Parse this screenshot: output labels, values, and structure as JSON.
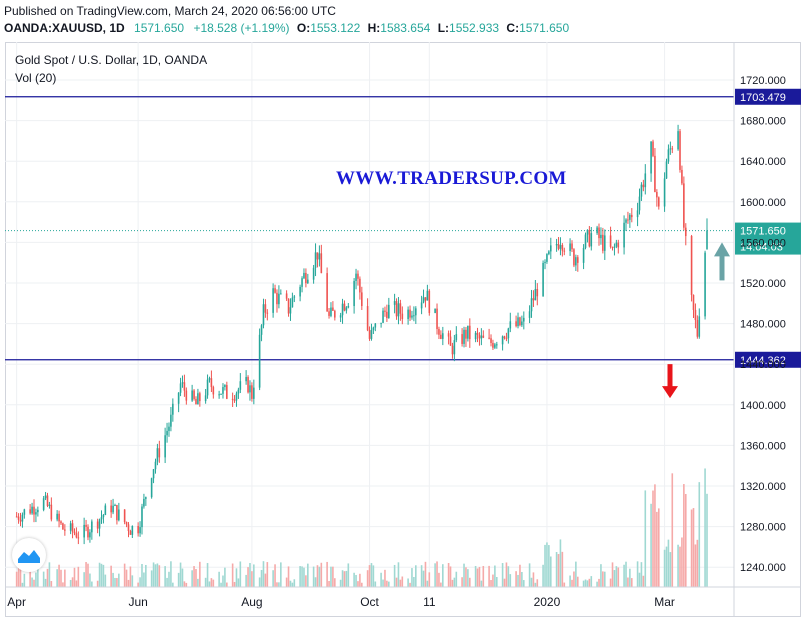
{
  "header": {
    "published": "Published on TradingView.com, March 24, 2020 06:56:00 UTC",
    "symbol": "OANDA:XAUUSD, 1D",
    "last": "1571.650",
    "change": "+18.528 (+1.19%)",
    "o_label": "O:",
    "o_value": "1553.122",
    "h_label": "H:",
    "h_value": "1583.654",
    "l_label": "L:",
    "l_value": "1552.933",
    "c_label": "C:",
    "c_value": "1571.650"
  },
  "legend": {
    "title": "Gold Spot / U.S. Dollar, 1D, OANDA",
    "volume": "Vol (20)"
  },
  "watermark": "WWW.TRADERSUP.COM",
  "icons": {
    "logo": "tradingview-logo-icon",
    "down_arrow": "arrow-down-icon",
    "up_arrow": "arrow-up-icon"
  },
  "colors": {
    "up": "#26a69a",
    "down": "#ef5350",
    "hline": "#1a1a9a",
    "price_line": "#26a69a",
    "arrow_down": "#e8141a",
    "arrow_up": "#6aa3a6"
  },
  "chart_data": {
    "type": "candlestick",
    "title": "Gold Spot / U.S. Dollar, 1D, OANDA",
    "ylim": [
      1220,
      1740
    ],
    "y_ticks": [
      "1720.000",
      "1680.000",
      "1640.000",
      "1600.000",
      "1560.000",
      "1520.000",
      "1480.000",
      "1440.000",
      "1400.000",
      "1360.000",
      "1320.000",
      "1280.000",
      "1240.000"
    ],
    "x_ticks": [
      "Apr",
      "Jun",
      "Aug",
      "Oct",
      "11",
      "2020",
      "Mar"
    ],
    "horizontal_lines": [
      {
        "value": 1703.479,
        "label": "1703.479"
      },
      {
        "value": 1444.362,
        "label": "1444.362"
      }
    ],
    "last_price": {
      "value": 1571.65,
      "label": "1571.650",
      "countdown": "14:04:03"
    },
    "price_path": [
      [
        "2019-04-01",
        1290
      ],
      [
        "2019-04-15",
        1305
      ],
      [
        "2019-04-25",
        1278
      ],
      [
        "2019-05-05",
        1272
      ],
      [
        "2019-05-15",
        1290
      ],
      [
        "2019-05-20",
        1300
      ],
      [
        "2019-05-30",
        1278
      ],
      [
        "2019-06-03",
        1280
      ],
      [
        "2019-06-10",
        1335
      ],
      [
        "2019-06-20",
        1385
      ],
      [
        "2019-06-25",
        1420
      ],
      [
        "2019-07-03",
        1400
      ],
      [
        "2019-07-10",
        1420
      ],
      [
        "2019-07-20",
        1410
      ],
      [
        "2019-07-30",
        1420
      ],
      [
        "2019-08-01",
        1410
      ],
      [
        "2019-08-07",
        1490
      ],
      [
        "2019-08-12",
        1510
      ],
      [
        "2019-08-20",
        1495
      ],
      [
        "2019-08-26",
        1520
      ],
      [
        "2019-09-04",
        1550
      ],
      [
        "2019-09-10",
        1485
      ],
      [
        "2019-09-20",
        1505
      ],
      [
        "2019-09-24",
        1530
      ],
      [
        "2019-10-01",
        1465
      ],
      [
        "2019-10-10",
        1495
      ],
      [
        "2019-10-20",
        1490
      ],
      [
        "2019-10-30",
        1510
      ],
      [
        "2019-11-05",
        1480
      ],
      [
        "2019-11-12",
        1455
      ],
      [
        "2019-11-20",
        1470
      ],
      [
        "2019-12-02",
        1460
      ],
      [
        "2019-12-12",
        1475
      ],
      [
        "2019-12-20",
        1480
      ],
      [
        "2019-12-26",
        1510
      ],
      [
        "2020-01-03",
        1550
      ],
      [
        "2020-01-08",
        1565
      ],
      [
        "2020-01-15",
        1545
      ],
      [
        "2020-01-25",
        1570
      ],
      [
        "2020-02-04",
        1550
      ],
      [
        "2020-02-10",
        1575
      ],
      [
        "2020-02-17",
        1600
      ],
      [
        "2020-02-24",
        1650
      ],
      [
        "2020-02-28",
        1590
      ],
      [
        "2020-03-03",
        1640
      ],
      [
        "2020-03-09",
        1675
      ],
      [
        "2020-03-12",
        1575
      ],
      [
        "2020-03-16",
        1500
      ],
      [
        "2020-03-19",
        1470
      ],
      [
        "2020-03-20",
        1495
      ],
      [
        "2020-03-23",
        1553
      ],
      [
        "2020-03-24",
        1571.65
      ]
    ]
  }
}
